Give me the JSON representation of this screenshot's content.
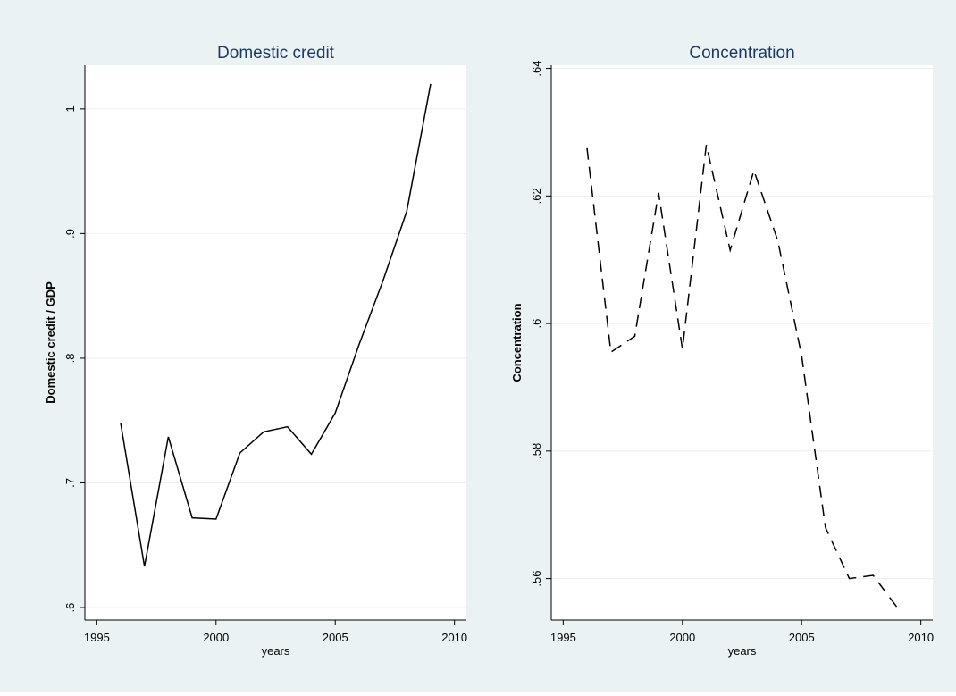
{
  "colors": {
    "outer_background": "#eaf2f3",
    "plot_background": "#ffffff",
    "gridline": "#e8f0f0",
    "axis": "#000000",
    "title": "#1e3a5f",
    "line": "#000000"
  },
  "chart_data": [
    {
      "type": "line",
      "title": "Domestic credit",
      "xlabel": "years",
      "ylabel": "Domestic credit / GDP",
      "xlim": [
        1994.5,
        2010.5
      ],
      "ylim": [
        0.59,
        1.035
      ],
      "xticks": [
        1995,
        2000,
        2005,
        2010
      ],
      "xtick_labels": [
        "1995",
        "2000",
        "2005",
        "2010"
      ],
      "yticks": [
        0.6,
        0.7,
        0.8,
        0.9,
        1.0
      ],
      "ytick_labels": [
        ".6",
        ".7",
        ".8",
        ".9",
        "1"
      ],
      "grid": true,
      "line_style": "solid",
      "x": [
        1996,
        1997,
        1998,
        1999,
        2000,
        2001,
        2002,
        2003,
        2004,
        2005,
        2006,
        2007,
        2008,
        2009
      ],
      "y": [
        0.748,
        0.633,
        0.737,
        0.672,
        0.671,
        0.724,
        0.741,
        0.745,
        0.723,
        0.756,
        0.811,
        0.862,
        0.918,
        1.02
      ]
    },
    {
      "type": "line",
      "title": "Concentration",
      "xlabel": "years",
      "ylabel": "Concentration",
      "xlim": [
        1994.5,
        2010.5
      ],
      "ylim": [
        0.5535,
        0.6405
      ],
      "xticks": [
        1995,
        2000,
        2005,
        2010
      ],
      "xtick_labels": [
        "1995",
        "2000",
        "2005",
        "2010"
      ],
      "yticks": [
        0.56,
        0.58,
        0.6,
        0.62,
        0.64
      ],
      "ytick_labels": [
        ".56",
        ".58",
        ".6",
        ".62",
        ".64"
      ],
      "grid": true,
      "line_style": "dashed",
      "x": [
        1996,
        1997,
        1998,
        1999,
        2000,
        2001,
        2002,
        2003,
        2004,
        2005,
        2006,
        2007,
        2008,
        2009
      ],
      "y": [
        0.6275,
        0.5955,
        0.598,
        0.6205,
        0.596,
        0.628,
        0.6115,
        0.624,
        0.613,
        0.595,
        0.568,
        0.56,
        0.5605,
        0.5555
      ]
    }
  ]
}
